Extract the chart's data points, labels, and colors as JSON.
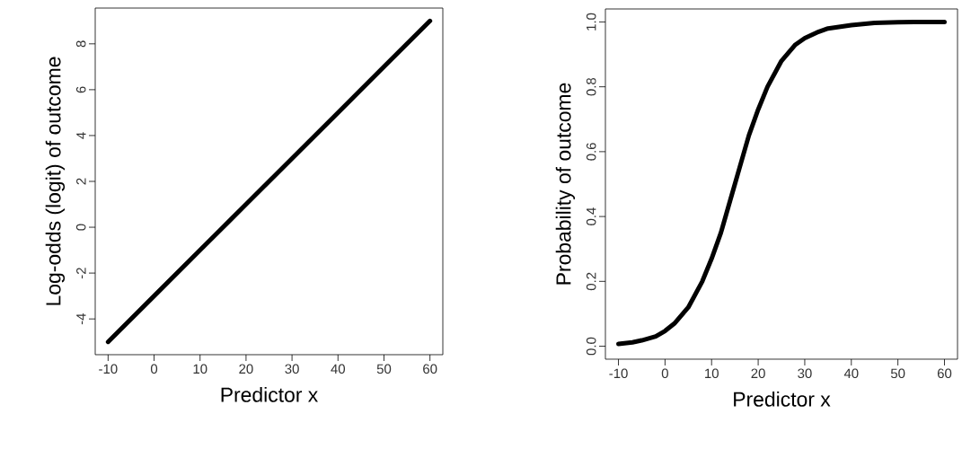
{
  "chart_data": [
    {
      "type": "line",
      "xlabel": "Predictor x",
      "ylabel": "Log-odds (logit) of outcome",
      "x": [
        -10,
        0,
        10,
        20,
        30,
        40,
        50,
        60
      ],
      "series": [
        {
          "color": "#000000",
          "values": [
            -5,
            -3,
            -1,
            1,
            3,
            5,
            7,
            9
          ]
        }
      ],
      "xlim": [
        -12.8,
        62.8
      ],
      "ylim": [
        -5.56,
        9.56
      ],
      "xticks": [
        -10,
        0,
        10,
        20,
        30,
        40,
        50,
        60
      ],
      "yticks": [
        -4,
        -2,
        0,
        2,
        4,
        6,
        8
      ],
      "grid": false
    },
    {
      "type": "line",
      "xlabel": "Predictor x",
      "ylabel": "Probability of outcome",
      "x": [
        -10,
        -7,
        -5,
        -2,
        0,
        2,
        5,
        8,
        10,
        12,
        14,
        15,
        16,
        18,
        20,
        22,
        25,
        28,
        30,
        33,
        35,
        40,
        45,
        50,
        55,
        60
      ],
      "series": [
        {
          "color": "#000000",
          "values": [
            0.007,
            0.012,
            0.018,
            0.03,
            0.047,
            0.07,
            0.12,
            0.2,
            0.27,
            0.35,
            0.45,
            0.5,
            0.55,
            0.65,
            0.73,
            0.8,
            0.88,
            0.93,
            0.95,
            0.97,
            0.98,
            0.99,
            0.997,
            0.999,
            1.0,
            1.0
          ]
        }
      ],
      "xlim": [
        -12.8,
        62.8
      ],
      "ylim": [
        -0.04,
        1.04
      ],
      "xticks": [
        -10,
        0,
        10,
        20,
        30,
        40,
        50,
        60
      ],
      "yticks": [
        {
          "value": 0,
          "label": "0.0"
        },
        {
          "value": 0.2,
          "label": "0.2"
        },
        {
          "value": 0.4,
          "label": "0.4"
        },
        {
          "value": 0.6,
          "label": "0.6"
        },
        {
          "value": 0.8,
          "label": "0.8"
        },
        {
          "value": 1,
          "label": "1.0"
        }
      ],
      "grid": false
    }
  ]
}
